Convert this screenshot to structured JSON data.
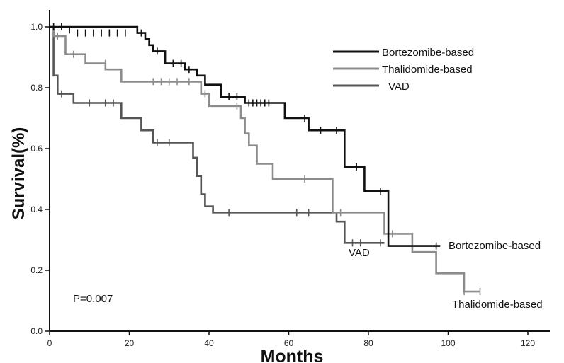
{
  "chart_data": {
    "type": "line",
    "step": true,
    "xlabel": "Months",
    "ylabel": "Survival(%)",
    "xlim": [
      0,
      130
    ],
    "ylim": [
      0,
      1.0
    ],
    "xticks": [
      0,
      20,
      40,
      60,
      80,
      100,
      120
    ],
    "yticks": [
      0.0,
      0.2,
      0.4,
      0.6,
      0.8,
      1.0
    ],
    "x_tick_labels": [
      "0",
      "20",
      "40",
      "60",
      "80",
      "100",
      "120"
    ],
    "y_tick_labels": [
      "0.0",
      "0.2",
      "0.4",
      "0.6",
      "0.8",
      "1.0"
    ],
    "legend": {
      "placement": "top-right"
    },
    "annotation": "P=0.007",
    "series": [
      {
        "name": "Bortezomibe-based",
        "color": "#111111",
        "end_label": "Bortezomibe-based",
        "points": [
          [
            0,
            1.0
          ],
          [
            22,
            1.0
          ],
          [
            22,
            0.98
          ],
          [
            24,
            0.98
          ],
          [
            24,
            0.96
          ],
          [
            25,
            0.96
          ],
          [
            25,
            0.94
          ],
          [
            26,
            0.94
          ],
          [
            26,
            0.92
          ],
          [
            29,
            0.92
          ],
          [
            29,
            0.88
          ],
          [
            34,
            0.88
          ],
          [
            34,
            0.86
          ],
          [
            37,
            0.86
          ],
          [
            37,
            0.84
          ],
          [
            39,
            0.84
          ],
          [
            39,
            0.81
          ],
          [
            43,
            0.81
          ],
          [
            43,
            0.77
          ],
          [
            49,
            0.77
          ],
          [
            49,
            0.75
          ],
          [
            59,
            0.75
          ],
          [
            59,
            0.7
          ],
          [
            65,
            0.7
          ],
          [
            65,
            0.66
          ],
          [
            74,
            0.66
          ],
          [
            74,
            0.54
          ],
          [
            79,
            0.54
          ],
          [
            79,
            0.46
          ],
          [
            85,
            0.46
          ],
          [
            85,
            0.28
          ],
          [
            98,
            0.28
          ]
        ],
        "censor": [
          [
            1,
            1.0
          ],
          [
            3,
            1.0
          ],
          [
            5,
            0.99
          ],
          [
            7,
            0.98
          ],
          [
            9,
            0.98
          ],
          [
            11,
            0.98
          ],
          [
            13,
            0.98
          ],
          [
            15,
            0.98
          ],
          [
            17,
            0.98
          ],
          [
            19,
            0.98
          ],
          [
            23,
            0.98
          ],
          [
            27,
            0.92
          ],
          [
            31,
            0.88
          ],
          [
            33,
            0.88
          ],
          [
            35,
            0.86
          ],
          [
            45,
            0.77
          ],
          [
            47,
            0.77
          ],
          [
            50,
            0.75
          ],
          [
            51,
            0.75
          ],
          [
            52,
            0.75
          ],
          [
            53,
            0.75
          ],
          [
            54,
            0.75
          ],
          [
            55,
            0.75
          ],
          [
            64,
            0.7
          ],
          [
            68,
            0.66
          ],
          [
            72,
            0.66
          ],
          [
            77,
            0.54
          ],
          [
            83,
            0.46
          ],
          [
            97,
            0.28
          ]
        ]
      },
      {
        "name": "Thalidomide-based",
        "color": "#8c8c8c",
        "end_label": "Thalidomide-based",
        "points": [
          [
            0,
            1.0
          ],
          [
            1,
            1.0
          ],
          [
            1,
            0.97
          ],
          [
            4,
            0.97
          ],
          [
            4,
            0.91
          ],
          [
            9,
            0.91
          ],
          [
            9,
            0.88
          ],
          [
            14,
            0.88
          ],
          [
            14,
            0.86
          ],
          [
            18,
            0.86
          ],
          [
            18,
            0.82
          ],
          [
            38,
            0.82
          ],
          [
            38,
            0.78
          ],
          [
            40,
            0.78
          ],
          [
            40,
            0.74
          ],
          [
            48,
            0.74
          ],
          [
            48,
            0.7
          ],
          [
            49,
            0.7
          ],
          [
            49,
            0.65
          ],
          [
            50,
            0.65
          ],
          [
            50,
            0.61
          ],
          [
            52,
            0.61
          ],
          [
            52,
            0.55
          ],
          [
            56,
            0.55
          ],
          [
            56,
            0.5
          ],
          [
            71,
            0.5
          ],
          [
            71,
            0.39
          ],
          [
            84,
            0.39
          ],
          [
            84,
            0.32
          ],
          [
            91,
            0.32
          ],
          [
            91,
            0.26
          ],
          [
            97,
            0.26
          ],
          [
            97,
            0.19
          ],
          [
            104,
            0.19
          ],
          [
            104,
            0.13
          ],
          [
            108,
            0.13
          ]
        ],
        "censor": [
          [
            2,
            0.97
          ],
          [
            6,
            0.91
          ],
          [
            14,
            0.88
          ],
          [
            26,
            0.82
          ],
          [
            28,
            0.82
          ],
          [
            30,
            0.82
          ],
          [
            32,
            0.82
          ],
          [
            35,
            0.82
          ],
          [
            39,
            0.78
          ],
          [
            47,
            0.74
          ],
          [
            49,
            0.68
          ],
          [
            64,
            0.5
          ],
          [
            73,
            0.39
          ],
          [
            86,
            0.32
          ],
          [
            104,
            0.13
          ],
          [
            108,
            0.13
          ]
        ]
      },
      {
        "name": "VAD",
        "color": "#555555",
        "end_label": "VAD",
        "points": [
          [
            0,
            1.0
          ],
          [
            1,
            1.0
          ],
          [
            1,
            0.84
          ],
          [
            2,
            0.84
          ],
          [
            2,
            0.78
          ],
          [
            6,
            0.78
          ],
          [
            6,
            0.75
          ],
          [
            18,
            0.75
          ],
          [
            18,
            0.7
          ],
          [
            23,
            0.7
          ],
          [
            23,
            0.66
          ],
          [
            26,
            0.66
          ],
          [
            26,
            0.62
          ],
          [
            36,
            0.62
          ],
          [
            36,
            0.57
          ],
          [
            37,
            0.57
          ],
          [
            37,
            0.51
          ],
          [
            38,
            0.51
          ],
          [
            38,
            0.45
          ],
          [
            39,
            0.45
          ],
          [
            39,
            0.41
          ],
          [
            41,
            0.41
          ],
          [
            41,
            0.39
          ],
          [
            72,
            0.39
          ],
          [
            72,
            0.36
          ],
          [
            74,
            0.36
          ],
          [
            74,
            0.29
          ],
          [
            84,
            0.29
          ]
        ],
        "censor": [
          [
            3,
            0.78
          ],
          [
            10,
            0.75
          ],
          [
            14,
            0.75
          ],
          [
            16,
            0.75
          ],
          [
            27,
            0.62
          ],
          [
            30,
            0.62
          ],
          [
            45,
            0.39
          ],
          [
            62,
            0.39
          ],
          [
            65,
            0.39
          ],
          [
            76,
            0.29
          ],
          [
            78,
            0.29
          ],
          [
            83,
            0.29
          ]
        ]
      }
    ]
  }
}
